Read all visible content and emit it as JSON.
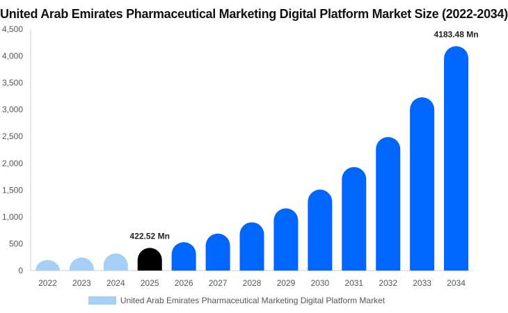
{
  "chart_data": {
    "type": "bar",
    "title": "United Arab Emirates Pharmaceutical Marketing Digital Platform Market Size (2022-2034)",
    "categories": [
      "2022",
      "2023",
      "2024",
      "2025",
      "2026",
      "2027",
      "2028",
      "2029",
      "2030",
      "2031",
      "2032",
      "2033",
      "2034"
    ],
    "series": [
      {
        "name": "United Arab Emirates Pharmaceutical Marketing Digital Platform Market",
        "values": [
          195,
          245,
          320,
          422.52,
          530,
          690,
          900,
          1160,
          1510,
          1930,
          2490,
          3230,
          4183.48
        ]
      }
    ],
    "bar_colors": [
      "#a6cff8",
      "#a6cff8",
      "#a6cff8",
      "#000000",
      "#0066ff",
      "#0066ff",
      "#0066ff",
      "#0066ff",
      "#0066ff",
      "#0066ff",
      "#0066ff",
      "#0066ff",
      "#0066ff"
    ],
    "data_labels": [
      {
        "index": 3,
        "text": "422.52 Mn"
      },
      {
        "index": 12,
        "text": "4183.48 Mn"
      }
    ],
    "yticks": [
      "0",
      "500",
      "1,000",
      "1,500",
      "2,000",
      "2,500",
      "3,000",
      "3,500",
      "4,000",
      "4,500"
    ],
    "ylim": [
      0,
      4500
    ],
    "xlabel": "",
    "ylabel": "",
    "grid": false,
    "legend_position": "bottom"
  },
  "legend": {
    "label": "United Arab Emirates Pharmaceutical Marketing Digital Platform Market",
    "color": "#a6cff8"
  }
}
